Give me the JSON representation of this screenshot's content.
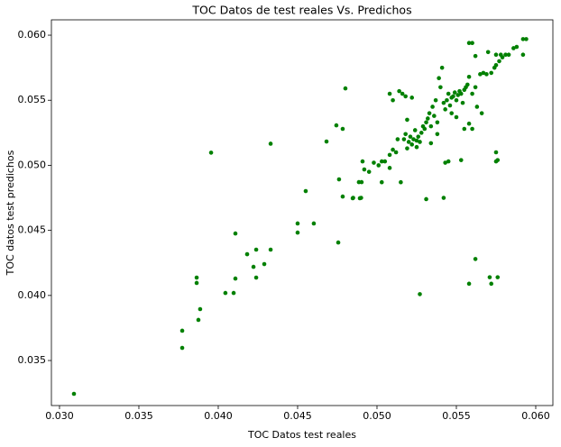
{
  "chart_data": {
    "type": "scatter",
    "title": "TOC Datos de test reales Vs. Predichos",
    "xlabel": "TOC Datos test reales",
    "ylabel": "TOC datos test predichos",
    "color": "green",
    "xlim": [
      0.02949,
      0.06108
    ],
    "ylim": [
      0.03154,
      0.06118
    ],
    "xticks": [
      {
        "value": 0.03,
        "label": "0.030"
      },
      0.035,
      {
        "value": 0.04,
        "label": "0.040"
      },
      0.045,
      {
        "value": 0.05,
        "label": "0.050"
      },
      0.055,
      {
        "value": 0.06,
        "label": "0.060"
      }
    ],
    "yticks": [
      0.035,
      {
        "value": 0.04,
        "label": "0.040"
      },
      0.045,
      {
        "value": 0.05,
        "label": "0.050"
      },
      0.055,
      {
        "value": 0.06,
        "label": "0.060"
      }
    ],
    "x": [
      0.03091,
      0.03773,
      0.03773,
      0.03864,
      0.03864,
      0.03886,
      0.03875,
      0.03955,
      0.04045,
      0.04097,
      0.04108,
      0.04108,
      0.04182,
      0.04222,
      0.04239,
      0.04239,
      0.0429,
      0.0433,
      0.0433,
      0.045,
      0.045,
      0.04551,
      0.04602,
      0.04682,
      0.04744,
      0.04756,
      0.04761,
      0.04784,
      0.04784,
      0.04801,
      0.04847,
      0.04892,
      0.04886,
      0.04903,
      0.04909,
      0.0492,
      0.0495,
      0.0498,
      0.0501,
      0.0503,
      0.0505,
      0.0508,
      0.0503,
      0.0508,
      0.051,
      0.0512,
      0.0513,
      0.0515,
      0.051,
      0.0514,
      0.0518,
      0.0522,
      0.0517,
      0.0518,
      0.052,
      0.0521,
      0.0522,
      0.0523,
      0.0524,
      0.0525,
      0.0526,
      0.0527,
      0.0528,
      0.0529,
      0.053,
      0.0531,
      0.0532,
      0.0533,
      0.0534,
      0.0535,
      0.0536,
      0.0537,
      0.0538,
      0.0539,
      0.054,
      0.0541,
      0.0542,
      0.0543,
      0.0544,
      0.0545,
      0.0546,
      0.0547,
      0.0548,
      0.0549,
      0.055,
      0.0551,
      0.0552,
      0.0553,
      0.0554,
      0.0555,
      0.0556,
      0.0557,
      0.0558,
      0.056,
      0.0558,
      0.056,
      0.0562,
      0.0563,
      0.0565,
      0.0567,
      0.0569,
      0.057,
      0.0572,
      0.0574,
      0.0575,
      0.0577,
      0.0579,
      0.0581,
      0.0583,
      0.0586,
      0.0588,
      0.0592,
      0.0594,
      0.0592,
      0.0575,
      0.0578,
      0.0562,
      0.0545,
      0.0543,
      0.0553,
      0.0558,
      0.0575,
      0.0576,
      0.0575,
      0.0542,
      0.0531,
      0.0527,
      0.0558,
      0.0562,
      0.0571,
      0.0572,
      0.0576,
      0.0566,
      0.0555,
      0.056,
      0.0538,
      0.0534,
      0.0547,
      0.055,
      0.0525,
      0.0519,
      0.0516,
      0.0508,
      0.0519,
      0.049,
      0.0485
    ],
    "y": [
      0.03244,
      0.03729,
      0.03597,
      0.04137,
      0.04096,
      0.03895,
      0.03812,
      0.05097,
      0.04019,
      0.04019,
      0.04476,
      0.0413,
      0.04317,
      0.0422,
      0.04352,
      0.04137,
      0.04241,
      0.04352,
      0.05166,
      0.04553,
      0.04483,
      0.04802,
      0.04553,
      0.05183,
      0.05307,
      0.04407,
      0.04892,
      0.0528,
      0.0476,
      0.05591,
      0.04747,
      0.04747,
      0.04871,
      0.04871,
      0.0503,
      0.04968,
      0.0495,
      0.0502,
      0.05,
      0.0503,
      0.0503,
      0.0498,
      0.0487,
      0.0508,
      0.0512,
      0.051,
      0.052,
      0.0487,
      0.055,
      0.0557,
      0.0553,
      0.0552,
      0.052,
      0.0524,
      0.0518,
      0.0522,
      0.0516,
      0.052,
      0.0527,
      0.0519,
      0.0522,
      0.0518,
      0.0525,
      0.053,
      0.0528,
      0.0533,
      0.0536,
      0.054,
      0.053,
      0.0545,
      0.0538,
      0.055,
      0.0533,
      0.0567,
      0.056,
      0.0575,
      0.0548,
      0.0543,
      0.055,
      0.0555,
      0.0546,
      0.0552,
      0.0553,
      0.0556,
      0.055,
      0.0554,
      0.0557,
      0.0555,
      0.0548,
      0.0558,
      0.056,
      0.0562,
      0.0594,
      0.0594,
      0.0568,
      0.0555,
      0.056,
      0.0545,
      0.057,
      0.0571,
      0.057,
      0.0587,
      0.0571,
      0.0575,
      0.0577,
      0.058,
      0.0583,
      0.0585,
      0.0585,
      0.059,
      0.0591,
      0.0597,
      0.0597,
      0.0585,
      0.0585,
      0.0585,
      0.0584,
      0.0503,
      0.0502,
      0.0504,
      0.0532,
      0.051,
      0.0504,
      0.0503,
      0.0475,
      0.0474,
      0.0401,
      0.0409,
      0.0428,
      0.0414,
      0.0409,
      0.0414,
      0.054,
      0.0528,
      0.0528,
      0.0524,
      0.0517,
      0.054,
      0.0537,
      0.0514,
      0.0513,
      0.0555,
      0.0555,
      0.0535,
      0.0475,
      0.0475
    ]
  }
}
